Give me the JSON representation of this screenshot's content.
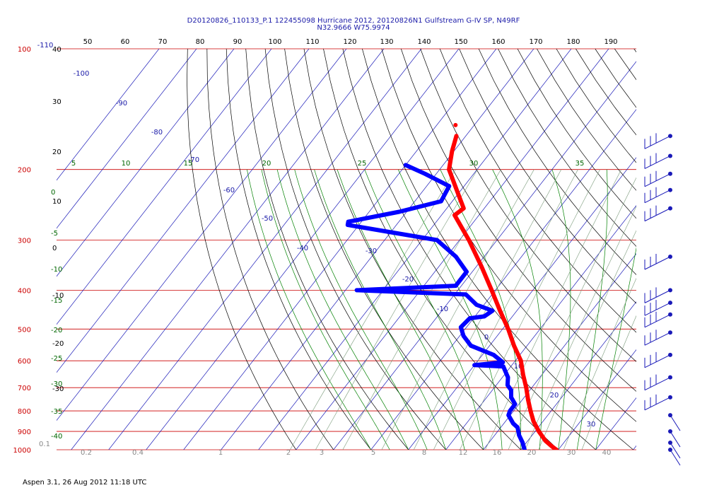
{
  "header": {
    "title_line1": "D20120826_110133_P.1 122455098 Hurricane 2012, 20120826N1 Gulfstream G-IV SP, N49RF",
    "title_line2": "N32.9666 W75.9974"
  },
  "footer": {
    "text": "Aspen 3.1, 26 Aug 2012  11:18 UTC"
  },
  "colors": {
    "isobar": "#cc0000",
    "isotherm": "#1a1ab8",
    "dry_adiabat": "#000000",
    "mixing_ratio": "#006600",
    "moist_adiabat": "#008000",
    "temperature_trace": "#ff0000",
    "dewpoint_trace": "#0000ff"
  },
  "chart_data": {
    "type": "skew-t log-p",
    "pressure_levels": [
      100,
      200,
      300,
      400,
      500,
      600,
      700,
      800,
      900,
      1000
    ],
    "pressure_labels": [
      "100",
      "200",
      "300",
      "400",
      "500",
      "600",
      "700",
      "800",
      "900",
      "1000"
    ],
    "theta_top_labels": [
      "50",
      "60",
      "70",
      "80",
      "90",
      "100",
      "110",
      "120",
      "130",
      "140",
      "150",
      "160",
      "170",
      "180",
      "190"
    ],
    "theta_left_labels": [
      "40",
      "30",
      "20",
      "10",
      "0",
      "-10",
      "-20",
      "-30"
    ],
    "isotherm_labels": [
      "-110",
      "-100",
      "-90",
      "-80",
      "-70",
      "-60",
      "-50",
      "-40",
      "-30",
      "-20",
      "-10",
      "0",
      "10",
      "20",
      "30"
    ],
    "mixing_ratio_top_labels": [
      "5",
      "10",
      "15",
      "20",
      "25",
      "30",
      "35"
    ],
    "mixing_ratio_bottom_labels": [
      "0.1",
      "0.2",
      "0.4",
      "1",
      "2",
      "3",
      "5",
      "8",
      "12",
      "16",
      "20",
      "30",
      "40"
    ],
    "moist_adiabat_labels": [
      "0",
      "-5",
      "-10",
      "-15",
      "-20",
      "-25",
      "-30",
      "-35",
      "-40"
    ],
    "temperature_profile": [
      {
        "p": 1000,
        "t": 29.5
      },
      {
        "p": 980,
        "t": 27.5
      },
      {
        "p": 950,
        "t": 24.7
      },
      {
        "p": 900,
        "t": 21.0
      },
      {
        "p": 850,
        "t": 17.5
      },
      {
        "p": 800,
        "t": 14.5
      },
      {
        "p": 750,
        "t": 11.5
      },
      {
        "p": 700,
        "t": 8.5
      },
      {
        "p": 650,
        "t": 5.0
      },
      {
        "p": 600,
        "t": 1.5
      },
      {
        "p": 550,
        "t": -3.5
      },
      {
        "p": 500,
        "t": -8.5
      },
      {
        "p": 450,
        "t": -14.5
      },
      {
        "p": 400,
        "t": -21.0
      },
      {
        "p": 350,
        "t": -28.5
      },
      {
        "p": 300,
        "t": -37.5
      },
      {
        "p": 260,
        "t": -46.5
      },
      {
        "p": 250,
        "t": -45.5
      },
      {
        "p": 230,
        "t": -50.0
      },
      {
        "p": 200,
        "t": -57.5
      },
      {
        "p": 180,
        "t": -60.5
      },
      {
        "p": 165,
        "t": -62.5
      }
    ],
    "dewpoint_profile": [
      {
        "p": 1000,
        "t": 21.0
      },
      {
        "p": 990,
        "t": 20.5
      },
      {
        "p": 960,
        "t": 19.0
      },
      {
        "p": 920,
        "t": 16.5
      },
      {
        "p": 880,
        "t": 14.5
      },
      {
        "p": 860,
        "t": 12.5
      },
      {
        "p": 820,
        "t": 9.5
      },
      {
        "p": 800,
        "t": 9.0
      },
      {
        "p": 770,
        "t": 9.0
      },
      {
        "p": 740,
        "t": 6.5
      },
      {
        "p": 710,
        "t": 5.0
      },
      {
        "p": 690,
        "t": 3.0
      },
      {
        "p": 660,
        "t": 1.5
      },
      {
        "p": 620,
        "t": -2.0
      },
      {
        "p": 615,
        "t": -10.0
      },
      {
        "p": 605,
        "t": -3.0
      },
      {
        "p": 580,
        "t": -7.0
      },
      {
        "p": 550,
        "t": -15.0
      },
      {
        "p": 520,
        "t": -19.0
      },
      {
        "p": 495,
        "t": -21.5
      },
      {
        "p": 470,
        "t": -21.0
      },
      {
        "p": 465,
        "t": -17.5
      },
      {
        "p": 450,
        "t": -16.5
      },
      {
        "p": 435,
        "t": -22.0
      },
      {
        "p": 410,
        "t": -27.0
      },
      {
        "p": 400,
        "t": -57.0
      },
      {
        "p": 390,
        "t": -31.5
      },
      {
        "p": 360,
        "t": -31.5
      },
      {
        "p": 330,
        "t": -37.5
      },
      {
        "p": 300,
        "t": -46.0
      },
      {
        "p": 275,
        "t": -73.0
      },
      {
        "p": 270,
        "t": -73.5
      },
      {
        "p": 255,
        "t": -62.0
      },
      {
        "p": 240,
        "t": -53.0
      },
      {
        "p": 220,
        "t": -54.0
      },
      {
        "p": 205,
        "t": -63.0
      },
      {
        "p": 195,
        "t": -70.0
      }
    ],
    "isolated_point": {
      "p": 155,
      "t": -65.0
    },
    "wind_barb_pressures": [
      165,
      185,
      205,
      225,
      250,
      330,
      400,
      430,
      460,
      510,
      580,
      660,
      740,
      820,
      900,
      960,
      1000
    ]
  }
}
